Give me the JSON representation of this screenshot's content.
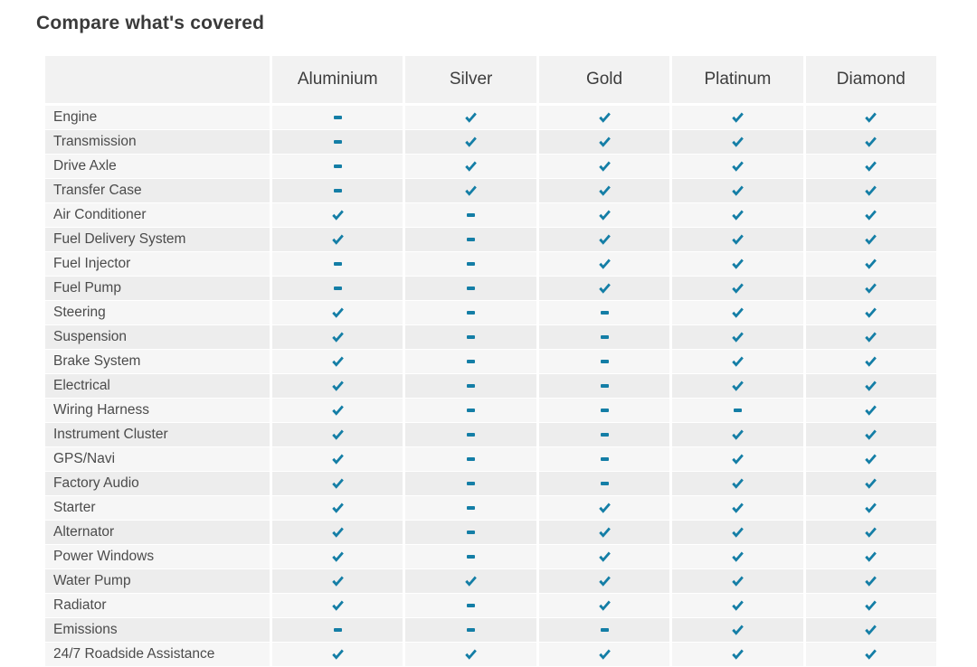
{
  "title": "Compare what's covered",
  "colors": {
    "accent_check": "#147ea6",
    "accent_dash": "#147ea6",
    "header_bg": "#f2f2f2",
    "row_odd_bg": "#f6f6f6",
    "row_even_bg": "#ededed",
    "title_text": "#3a3a3a",
    "label_text": "#4b4b4b",
    "header_text": "#3d3d3d"
  },
  "icons": {
    "covered": "check-icon",
    "not_covered": "dash-icon"
  },
  "chart_data": {
    "type": "table",
    "title": "Compare what's covered",
    "columns": [
      "Aluminium",
      "Silver",
      "Gold",
      "Platinum",
      "Diamond"
    ],
    "rows": [
      {
        "label": "Engine",
        "covered": [
          false,
          true,
          true,
          true,
          true
        ]
      },
      {
        "label": "Transmission",
        "covered": [
          false,
          true,
          true,
          true,
          true
        ]
      },
      {
        "label": "Drive Axle",
        "covered": [
          false,
          true,
          true,
          true,
          true
        ]
      },
      {
        "label": "Transfer Case",
        "covered": [
          false,
          true,
          true,
          true,
          true
        ]
      },
      {
        "label": "Air Conditioner",
        "covered": [
          true,
          false,
          true,
          true,
          true
        ]
      },
      {
        "label": "Fuel Delivery System",
        "covered": [
          true,
          false,
          true,
          true,
          true
        ]
      },
      {
        "label": "Fuel Injector",
        "covered": [
          false,
          false,
          true,
          true,
          true
        ]
      },
      {
        "label": "Fuel Pump",
        "covered": [
          false,
          false,
          true,
          true,
          true
        ]
      },
      {
        "label": "Steering",
        "covered": [
          true,
          false,
          false,
          true,
          true
        ]
      },
      {
        "label": "Suspension",
        "covered": [
          true,
          false,
          false,
          true,
          true
        ]
      },
      {
        "label": "Brake System",
        "covered": [
          true,
          false,
          false,
          true,
          true
        ]
      },
      {
        "label": "Electrical",
        "covered": [
          true,
          false,
          false,
          true,
          true
        ]
      },
      {
        "label": "Wiring Harness",
        "covered": [
          true,
          false,
          false,
          false,
          true
        ]
      },
      {
        "label": "Instrument Cluster",
        "covered": [
          true,
          false,
          false,
          true,
          true
        ]
      },
      {
        "label": "GPS/Navi",
        "covered": [
          true,
          false,
          false,
          true,
          true
        ]
      },
      {
        "label": "Factory Audio",
        "covered": [
          true,
          false,
          false,
          true,
          true
        ]
      },
      {
        "label": "Starter",
        "covered": [
          true,
          false,
          true,
          true,
          true
        ]
      },
      {
        "label": "Alternator",
        "covered": [
          true,
          false,
          true,
          true,
          true
        ]
      },
      {
        "label": "Power Windows",
        "covered": [
          true,
          false,
          true,
          true,
          true
        ]
      },
      {
        "label": "Water Pump",
        "covered": [
          true,
          true,
          true,
          true,
          true
        ]
      },
      {
        "label": "Radiator",
        "covered": [
          true,
          false,
          true,
          true,
          true
        ]
      },
      {
        "label": "Emissions",
        "covered": [
          false,
          false,
          false,
          true,
          true
        ]
      },
      {
        "label": "24/7 Roadside Assistance",
        "covered": [
          true,
          true,
          true,
          true,
          true
        ]
      }
    ]
  }
}
